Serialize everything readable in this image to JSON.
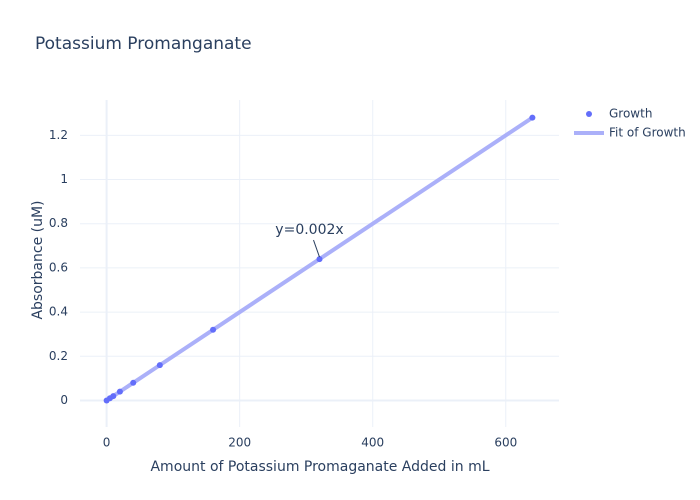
{
  "chart_data": {
    "type": "scatter",
    "title": "Potassium Promanganate",
    "x_label": "Amount of Potassium Promaganate Added in mL",
    "y_label": "Absorbance (uM)",
    "x": [
      0,
      5,
      10,
      20,
      40,
      80,
      160,
      320,
      640
    ],
    "series": [
      {
        "name": "Growth",
        "color": "#636efa",
        "mode": "markers",
        "values": [
          0,
          0.01,
          0.02,
          0.04,
          0.08,
          0.16,
          0.32,
          0.64,
          1.28
        ]
      },
      {
        "name": "Fit of Growth",
        "color": "#abb0f9",
        "mode": "lines",
        "values": [
          0,
          0.01,
          0.02,
          0.04,
          0.08,
          0.16,
          0.32,
          0.64,
          1.28
        ]
      }
    ],
    "annotations": [
      {
        "text": "y=0.002x",
        "x": 320,
        "y": 0.64
      }
    ],
    "xlim": [
      -40,
      680
    ],
    "ylim": [
      -0.12,
      1.36
    ],
    "xticks": [
      0,
      200,
      400,
      600
    ],
    "yticks": [
      0,
      0.2,
      0.4,
      0.6,
      0.8,
      1,
      1.2
    ],
    "grid": true,
    "legend": "top-right"
  }
}
